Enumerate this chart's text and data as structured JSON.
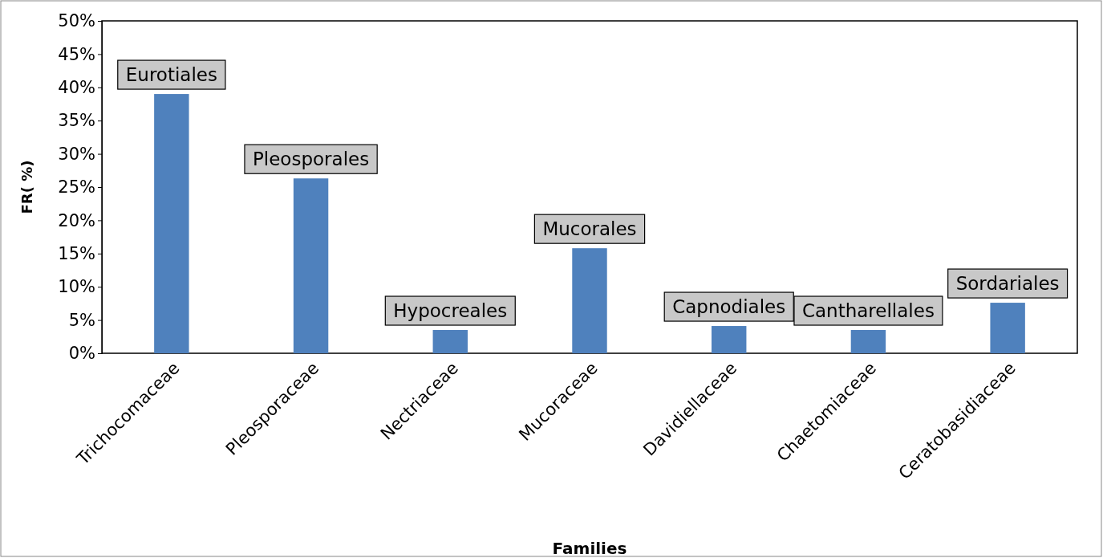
{
  "chart_data": {
    "type": "bar",
    "xlabel": "Families",
    "ylabel": "FR( %)",
    "categories": [
      "Trichocomaceae",
      "Pleosporaceae",
      "Nectriaceae",
      "Mucoraceae",
      "Davidiellaceae",
      "Chaetomiaceae",
      "Ceratobasidiaceae"
    ],
    "values": [
      39,
      26.3,
      3.5,
      15.8,
      4.1,
      3.5,
      7.6
    ],
    "color": "#4f81bd",
    "ylim": [
      0,
      50
    ],
    "yticks": [
      {
        "value": 0,
        "label": "0%"
      },
      {
        "value": 5,
        "label": "5%"
      },
      {
        "value": 10,
        "label": "10%"
      },
      {
        "value": 15,
        "label": "15%"
      },
      {
        "value": 20,
        "label": "20%"
      },
      {
        "value": 25,
        "label": "25%"
      },
      {
        "value": 30,
        "label": "30%"
      },
      {
        "value": 35,
        "label": "35%"
      },
      {
        "value": 40,
        "label": "40%"
      },
      {
        "value": 45,
        "label": "45%"
      },
      {
        "value": 50,
        "label": "50%"
      }
    ],
    "grid": false,
    "annotations": [
      {
        "text": "Eurotiales",
        "x": "Trichocomaceae",
        "y": 39
      },
      {
        "text": "Pleosporales",
        "x": "Pleosporaceae",
        "y": 26.3
      },
      {
        "text": "Hypocreales",
        "x": "Nectriaceae",
        "y": 3.5
      },
      {
        "text": "Mucorales",
        "x": "Mucoraceae",
        "y": 15.8
      },
      {
        "text": "Capnodiales",
        "x": "Davidiellaceae",
        "y": 4.1
      },
      {
        "text": "Cantharellales",
        "x": "Chaetomiaceae",
        "y": 3.5
      },
      {
        "text": "Sordariales",
        "x": "Ceratobasidiaceae",
        "y": 7.6
      }
    ]
  }
}
